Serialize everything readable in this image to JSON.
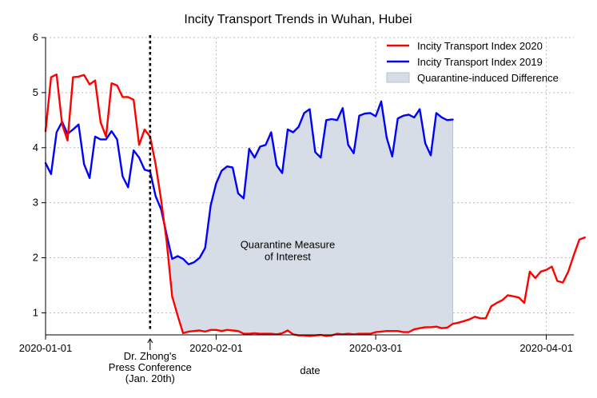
{
  "chart_data": {
    "type": "line",
    "title": "Incity Transport Trends in Wuhan, Hubei",
    "xlabel": "date",
    "ylabel": "",
    "x_axis_type": "date",
    "xlim": [
      "2020-01-01",
      "2020-04-06"
    ],
    "ylim": [
      0.6,
      6
    ],
    "grid": true,
    "legend_position": "top-right",
    "x_ticks": [
      {
        "date": "2020-01-01",
        "label": "2020-01-01"
      },
      {
        "date": "2020-02-01",
        "label": "2020-02-01"
      },
      {
        "date": "2020-03-01",
        "label": "2020-03-01"
      },
      {
        "date": "2020-04-01",
        "label": "2020-04-01"
      }
    ],
    "y_ticks": [
      1,
      2,
      3,
      4,
      5,
      6
    ],
    "series": [
      {
        "name": "Incity Transport Index 2020",
        "color": "#ff0000",
        "start_date": "2020-01-01",
        "values": [
          4.3,
          5.28,
          5.33,
          4.43,
          4.13,
          5.28,
          5.29,
          5.32,
          5.15,
          5.22,
          4.46,
          4.2,
          5.17,
          5.13,
          4.92,
          4.92,
          4.87,
          4.05,
          4.33,
          4.2,
          3.7,
          3.05,
          2.3,
          1.3,
          0.95,
          0.63,
          0.66,
          0.67,
          0.68,
          0.66,
          0.69,
          0.69,
          0.67,
          0.69,
          0.68,
          0.67,
          0.62,
          0.62,
          0.63,
          0.62,
          0.62,
          0.62,
          0.61,
          0.63,
          0.68,
          0.61,
          0.59,
          0.59,
          0.58,
          0.59,
          0.6,
          0.58,
          0.59,
          0.62,
          0.61,
          0.62,
          0.61,
          0.62,
          0.62,
          0.62,
          0.65,
          0.66,
          0.67,
          0.67,
          0.67,
          0.65,
          0.65,
          0.7,
          0.72,
          0.74,
          0.74,
          0.75,
          0.72,
          0.73,
          0.8,
          0.82,
          0.85,
          0.88,
          0.93,
          0.9,
          0.9,
          1.12,
          1.18,
          1.23,
          1.32,
          1.3,
          1.28,
          1.18,
          1.75,
          1.63,
          1.75,
          1.78,
          1.84,
          1.58,
          1.55,
          1.75,
          2.05,
          2.33,
          2.37
        ]
      },
      {
        "name": "Incity Transport Index 2019",
        "color": "#0000ff",
        "start_date": "2020-01-01",
        "values": [
          3.72,
          3.52,
          4.28,
          4.47,
          4.25,
          4.33,
          4.42,
          3.7,
          3.45,
          4.2,
          4.15,
          4.15,
          4.3,
          4.15,
          3.48,
          3.28,
          3.95,
          3.82,
          3.6,
          3.57,
          3.12,
          2.88,
          2.42,
          1.98,
          2.03,
          1.98,
          1.88,
          1.92,
          2.0,
          2.18,
          2.95,
          3.35,
          3.58,
          3.66,
          3.64,
          3.17,
          3.08,
          3.98,
          3.82,
          4.02,
          4.05,
          4.28,
          3.68,
          3.54,
          4.33,
          4.28,
          4.38,
          4.63,
          4.7,
          3.92,
          3.82,
          4.5,
          4.52,
          4.5,
          4.72,
          4.05,
          3.9,
          4.58,
          4.62,
          4.63,
          4.57,
          4.84,
          4.18,
          3.84,
          4.53,
          4.58,
          4.6,
          4.55,
          4.7,
          4.08,
          3.86,
          4.63,
          4.55,
          4.5,
          4.51
        ]
      }
    ],
    "shaded_region": {
      "name": "Quarantine-induced Difference",
      "fill": "#d6dde6",
      "edge": "#b4c2d1",
      "from": "2020-01-23",
      "to": "2020-03-15",
      "between": [
        "Incity Transport Index 2019",
        "Incity Transport Index 2020"
      ]
    },
    "annotations": [
      {
        "type": "vline",
        "date": "2020-01-20",
        "style": "dotted",
        "color": "#000000",
        "label_lines": [
          "Dr. Zhong's",
          "Press Conference",
          "(Jan. 20th)"
        ]
      },
      {
        "type": "text",
        "date": "2020-02-14",
        "y": 2.0,
        "lines": [
          "Quarantine Measure",
          "of Interest"
        ]
      }
    ]
  }
}
